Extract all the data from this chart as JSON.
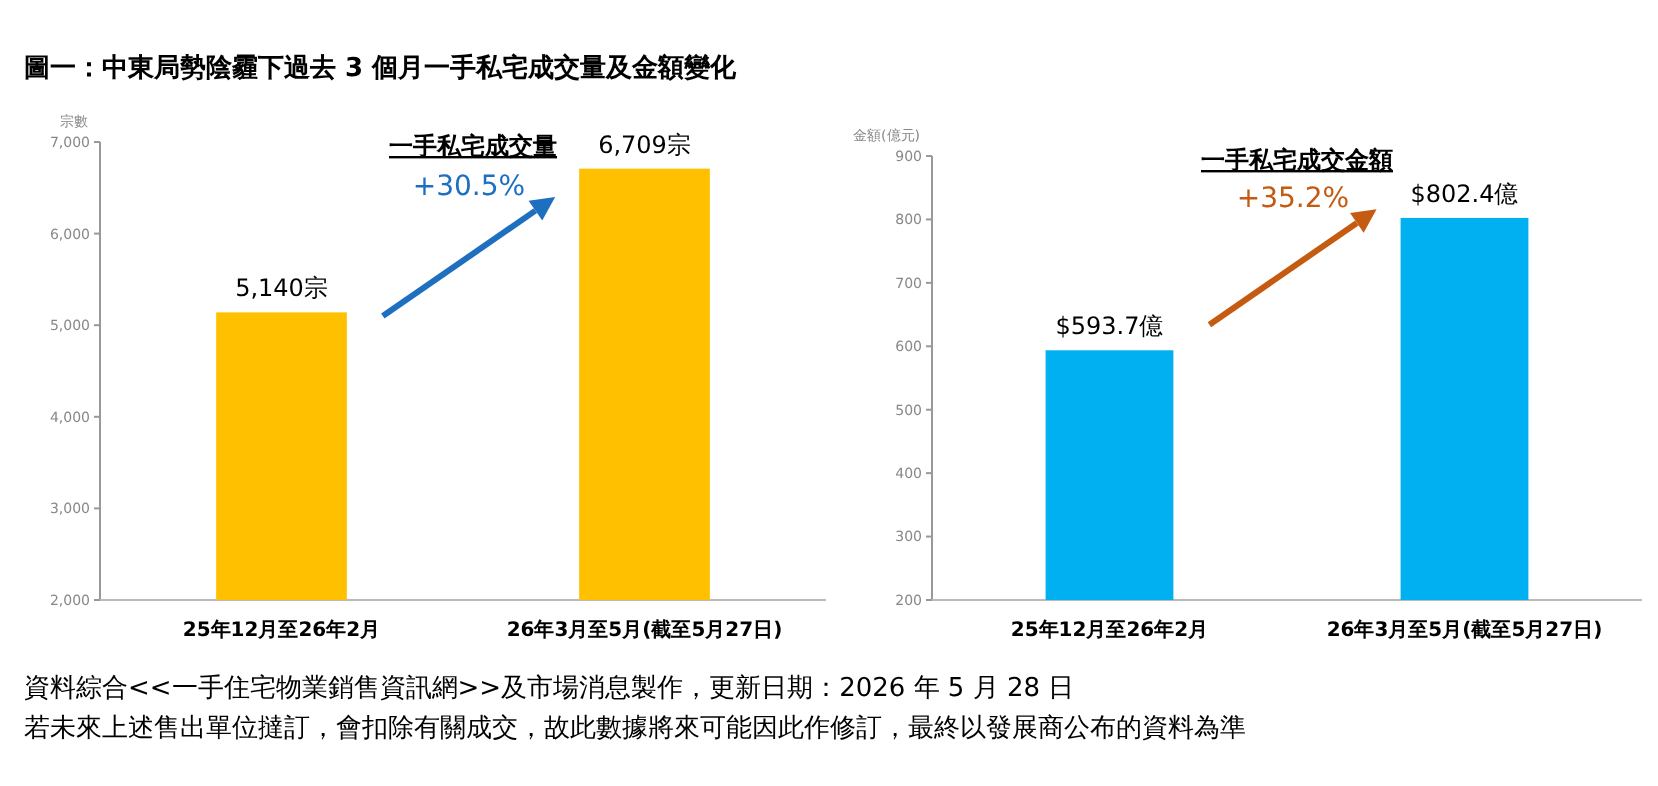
{
  "chart_data": [
    {
      "type": "bar",
      "title": "一手私宅成交量",
      "ylabel": "宗數",
      "categories": [
        "25年12月至26年2月",
        "26年3月至5月(截至5月27日)"
      ],
      "series": [
        {
          "color": "#ffc000",
          "values": [
            5140,
            6709
          ],
          "value_labels": [
            "5,140宗",
            "6,709宗"
          ]
        }
      ],
      "ylim": [
        2000,
        7000
      ],
      "yticks": [
        {
          "value": 2000,
          "label": "2,000"
        },
        {
          "value": 3000,
          "label": "3,000"
        },
        {
          "value": 4000,
          "label": "4,000"
        },
        {
          "value": 5000,
          "label": "5,000"
        },
        {
          "value": 6000,
          "label": "6,000"
        },
        {
          "value": 7000,
          "label": "7,000"
        }
      ],
      "grid": false,
      "annotations": [
        "圖一：中東局勢陰霾下過去 3 個月一手私宅成交量及金額變化",
        "+30.5%"
      ]
    },
    {
      "type": "bar",
      "title": "一手私宅成交金額",
      "ylabel": "金額(億元)",
      "categories": [
        "25年12月至26年2月",
        "26年3月至5月(截至5月27日)"
      ],
      "series": [
        {
          "color": "#00b0f0",
          "values": [
            593.7,
            802.4
          ],
          "value_labels": [
            "$593.7億",
            "$802.4億"
          ]
        }
      ],
      "ylim": [
        200,
        900
      ],
      "yticks": [
        200,
        300,
        400,
        500,
        600,
        700,
        800,
        900
      ],
      "grid": false,
      "annotations": [
        "+35.2%",
        "資料綜合<<一手住宅物業銷售資訊網>>及市場消息製作，更新日期：2026 年 5 月 28 日",
        "若未來上述售出單位撻訂，會扣除有關成交，故此數據將來可能因此作修訂，最終以發展商公布的資料為準"
      ]
    }
  ]
}
